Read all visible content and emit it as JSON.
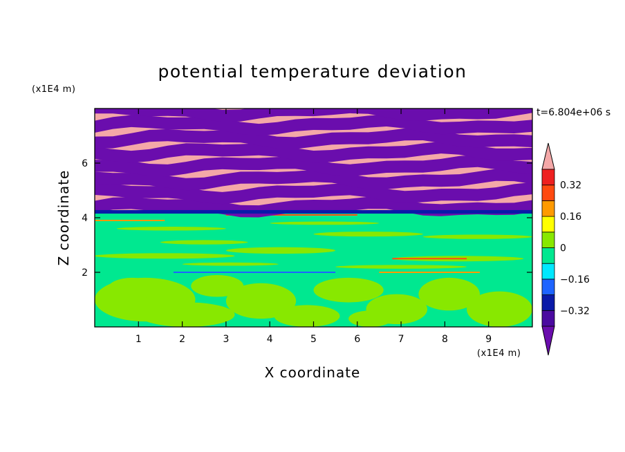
{
  "chart_data": {
    "type": "heatmap",
    "title": "potential temperature deviation",
    "xlabel": "X coordinate",
    "ylabel": "Z coordinate",
    "x_unit": "(x1E4 m)",
    "y_unit": "(x1E4 m)",
    "time_label": "t=6.804e+06 s",
    "xlim": [
      0,
      10
    ],
    "ylim": [
      0,
      8
    ],
    "x_ticks": [
      1,
      2,
      3,
      4,
      5,
      6,
      7,
      8,
      9
    ],
    "x_tick_labels": [
      "1",
      "2",
      "3",
      "4",
      "5",
      "6",
      "7",
      "8",
      "9"
    ],
    "y_ticks": [
      2,
      4,
      6
    ],
    "y_tick_labels": [
      "2",
      "4",
      "6"
    ],
    "colorbar": {
      "levels": [
        -0.4,
        -0.32,
        -0.24,
        -0.16,
        -0.08,
        0,
        0.08,
        0.16,
        0.24,
        0.32,
        0.4
      ],
      "colors": [
        "#6a0dad",
        "#4b0aa0",
        "#0a1aa8",
        "#1e64ff",
        "#00e8ff",
        "#00e890",
        "#88e800",
        "#ffff00",
        "#ff9a00",
        "#ff4a10",
        "#ee2020",
        "#f4a8a8"
      ],
      "labeled_levels": [
        0.32,
        0.16,
        0,
        -0.16,
        -0.32
      ],
      "labels": [
        "0.32",
        "0.16",
        "0",
        "−0.16",
        "−0.32"
      ]
    },
    "bands": [
      {
        "z0": 0.0,
        "z1": 1.9,
        "fill": "mix-lime-green"
      },
      {
        "z0": 1.9,
        "z1": 4.2,
        "fill": "green-with-lime-streaks"
      },
      {
        "z0": 4.2,
        "z1": 8.0,
        "fill": "alternating-pink-purple-layers"
      }
    ]
  }
}
